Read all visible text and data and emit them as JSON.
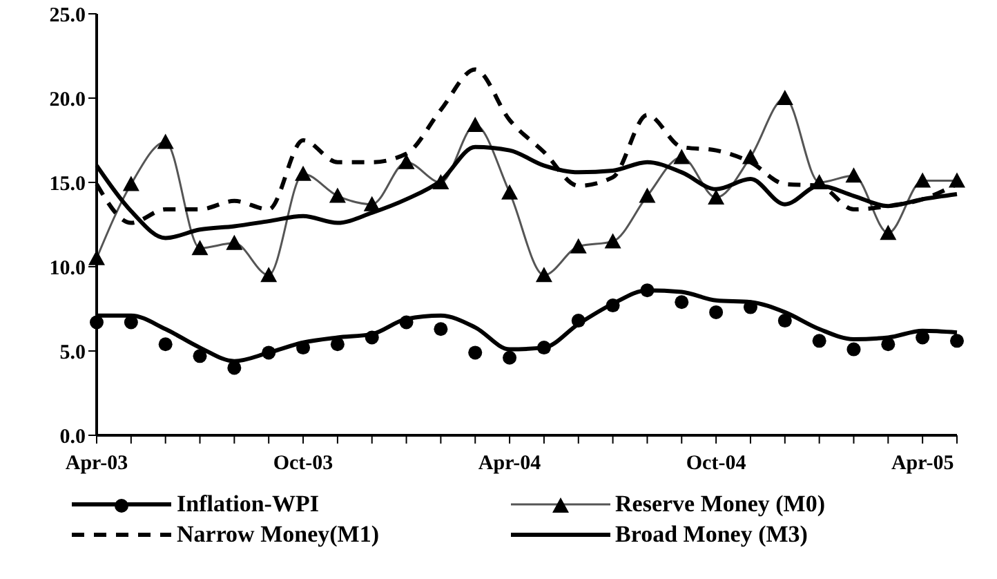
{
  "chart_data": {
    "type": "line",
    "categories": [
      "Apr-03",
      null,
      null,
      null,
      null,
      null,
      "Oct-03",
      null,
      null,
      null,
      null,
      null,
      "Apr-04",
      null,
      null,
      null,
      null,
      null,
      "Oct-04",
      null,
      null,
      null,
      null,
      null,
      "Apr-05",
      null
    ],
    "series": [
      {
        "name": "Inflation-WPI",
        "type": "scatter",
        "color": "#000000",
        "marker": "circle",
        "values": [
          6.7,
          6.7,
          5.4,
          4.7,
          4.0,
          4.9,
          5.2,
          5.4,
          5.8,
          6.7,
          6.3,
          4.9,
          4.6,
          5.2,
          6.8,
          7.7,
          8.6,
          7.9,
          7.3,
          7.6,
          6.8,
          5.6,
          5.1,
          5.4,
          5.8,
          5.6
        ]
      },
      {
        "type": "line",
        "color": "#000000",
        "values": [
          7.1,
          7.1,
          6.3,
          5.2,
          4.4,
          4.9,
          5.5,
          5.8,
          6.0,
          6.9,
          7.1,
          6.4,
          5.1,
          5.2,
          6.6,
          7.8,
          8.6,
          8.5,
          8.0,
          7.9,
          7.3,
          6.3,
          5.7,
          5.8,
          6.2,
          6.1
        ]
      },
      {
        "name": "Reserve Money (M0)",
        "color": "#555555",
        "marker": "triangle",
        "values": [
          10.5,
          14.9,
          17.4,
          11.1,
          11.4,
          9.5,
          15.5,
          14.2,
          13.7,
          16.2,
          15.0,
          18.4,
          14.4,
          9.5,
          11.2,
          11.5,
          14.2,
          16.5,
          14.1,
          16.5,
          20.0,
          15.0,
          15.4,
          12.0,
          15.1,
          15.1
        ]
      },
      {
        "name": "Narrow Money(M1)",
        "color": "#000000",
        "line_style": "dashed",
        "values": [
          14.9,
          12.6,
          13.4,
          13.4,
          13.9,
          13.4,
          17.5,
          16.2,
          16.2,
          16.7,
          19.3,
          21.7,
          18.7,
          16.8,
          14.8,
          15.3,
          19.0,
          17.1,
          16.9,
          16.2,
          14.9,
          14.8,
          13.4,
          13.6,
          14.0,
          14.9
        ]
      },
      {
        "name": "Broad Money (M3)",
        "color": "#000000",
        "values": [
          16.0,
          13.3,
          11.7,
          12.2,
          12.4,
          12.7,
          13.0,
          12.6,
          13.2,
          14.0,
          15.1,
          17.1,
          16.9,
          16.0,
          15.6,
          15.7,
          16.2,
          15.6,
          14.6,
          15.2,
          13.7,
          14.8,
          14.2,
          13.6,
          14.0,
          14.3
        ]
      }
    ],
    "ylim": [
      0,
      25
    ],
    "yticks": [
      {
        "value": 0,
        "label": "0.0"
      },
      {
        "value": 5,
        "label": "5.0"
      },
      {
        "value": 10,
        "label": "10.0"
      },
      {
        "value": 15,
        "label": "15.0"
      },
      {
        "value": 20,
        "label": "20.0"
      },
      {
        "value": 25,
        "label": "25.0"
      }
    ],
    "grid": false,
    "legend": "bottom"
  }
}
